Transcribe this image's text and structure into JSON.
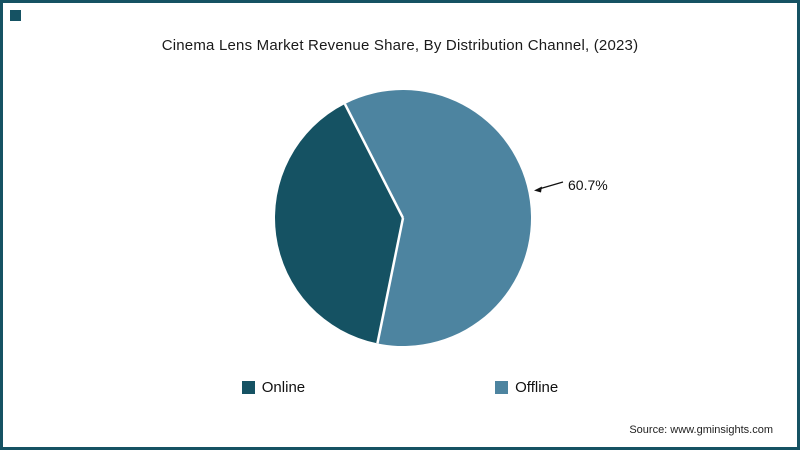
{
  "frame": {
    "border_color": "#155263",
    "corner_square_color": "#155263"
  },
  "title": "Cinema Lens Market Revenue Share, By Distribution Channel, (2023)",
  "source": "Source: www.gminsights.com",
  "chart_data": {
    "type": "pie",
    "title": "Cinema Lens Market Revenue Share, By Distribution Channel, (2023)",
    "categories": [
      "Online",
      "Offline"
    ],
    "values": [
      39.3,
      60.7
    ],
    "colors": [
      "#155263",
      "#4d84a0"
    ],
    "annotation": {
      "label": "60.7%",
      "slice": "Offline"
    },
    "legend_position": "bottom",
    "draw": {
      "start_angle_deg": -27,
      "order": [
        1,
        0
      ],
      "divider_color": "#ffffff"
    }
  },
  "legend": {
    "items": [
      {
        "label": "Online",
        "color": "#155263"
      },
      {
        "label": "Offline",
        "color": "#4d84a0"
      }
    ]
  }
}
